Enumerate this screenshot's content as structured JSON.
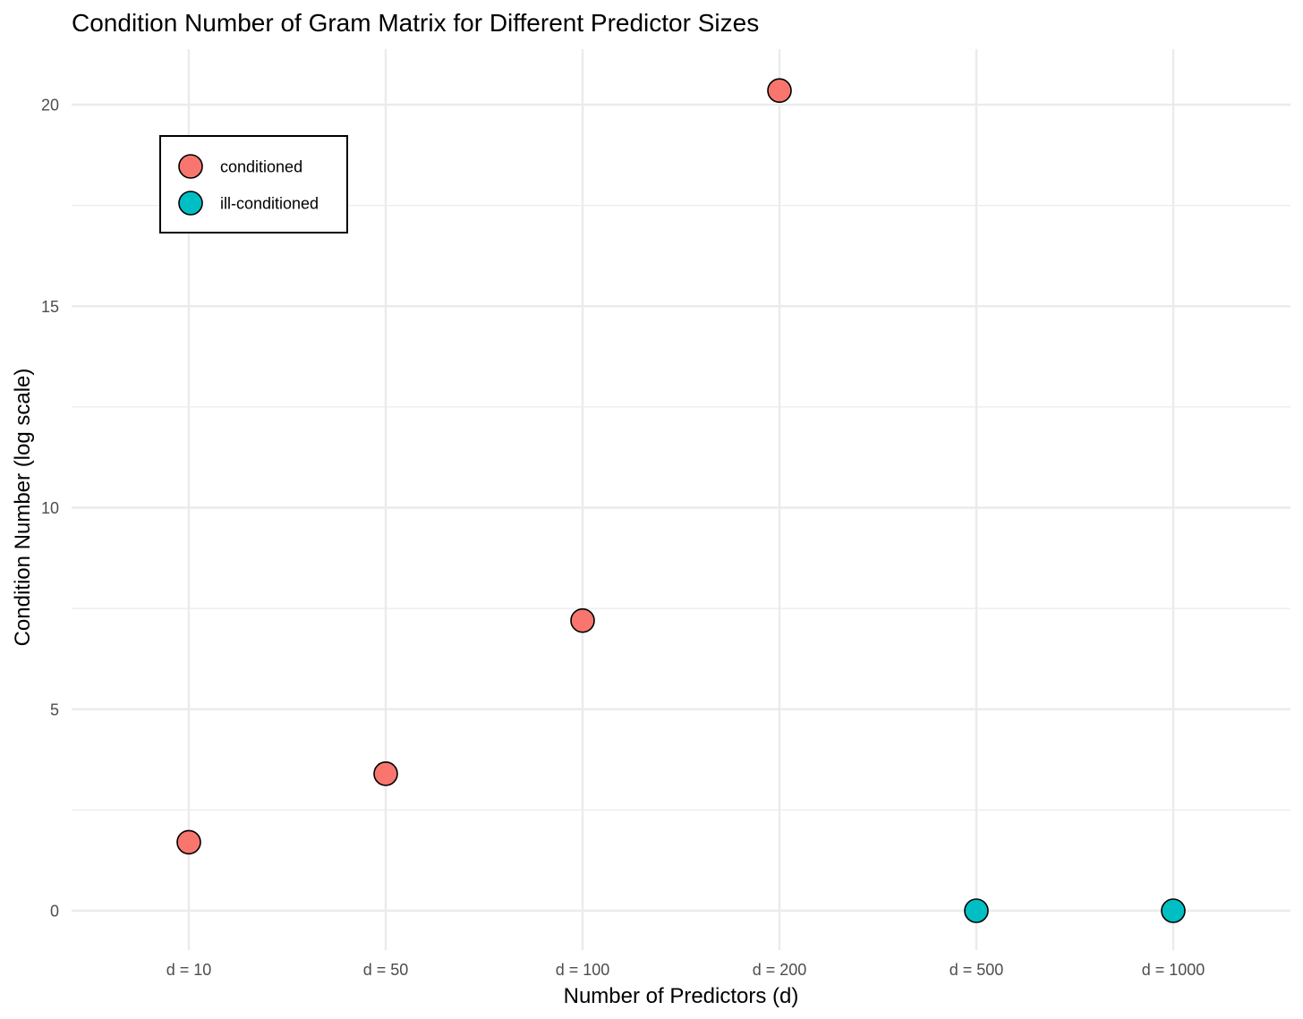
{
  "chart_data": {
    "type": "scatter",
    "title": "Condition Number of Gram Matrix for Different Predictor Sizes",
    "xlabel": "Number of Predictors (d)",
    "ylabel": "Condition Number (log scale)",
    "categories": [
      "d = 10",
      "d = 50",
      "d = 100",
      "d = 200",
      "d = 500",
      "d = 1000"
    ],
    "y_ticks": [
      0,
      5,
      10,
      15,
      20
    ],
    "ylim": [
      -1.0,
      21.3
    ],
    "grid": true,
    "legend_position": "top-left",
    "series": [
      {
        "name": "conditioned",
        "color": "#F8766D",
        "points": [
          {
            "x": "d = 10",
            "y": 1.7
          },
          {
            "x": "d = 50",
            "y": 3.4
          },
          {
            "x": "d = 100",
            "y": 7.2
          },
          {
            "x": "d = 200",
            "y": 20.35
          }
        ]
      },
      {
        "name": "ill-conditioned",
        "color": "#00BFC4",
        "points": [
          {
            "x": "d = 500",
            "y": 0
          },
          {
            "x": "d = 1000",
            "y": 0
          }
        ]
      }
    ]
  }
}
